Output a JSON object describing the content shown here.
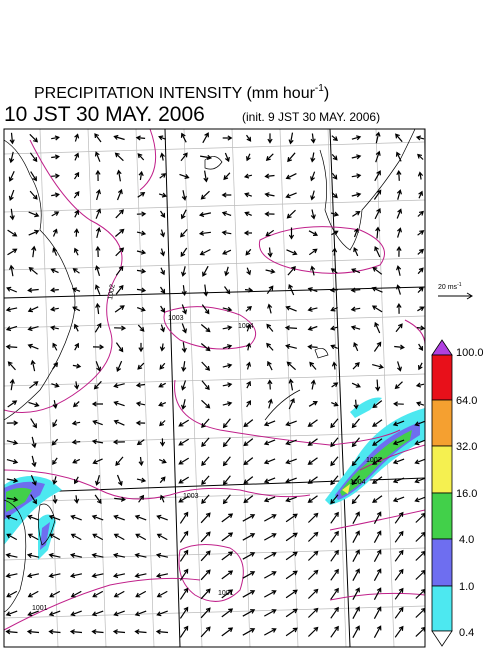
{
  "header": {
    "title": "PRECIPITATION INTENSITY (mm hour",
    "title_superscript": "-1",
    "title_close": ")",
    "valid_time": "10 JST 30 MAY. 2006",
    "init": "(init. 9 JST 30 MAY. 2006)"
  },
  "reference_vector": {
    "label": "20 ms",
    "superscript": "-1"
  },
  "colorbar": {
    "labels": [
      "100.0",
      "64.0",
      "32.0",
      "16.0",
      "4.0",
      "1.0",
      "0.4"
    ]
  },
  "isobar_labels": [
    "1002",
    "1003",
    "1004",
    "1003",
    "1001",
    "1001",
    "1002",
    "1004"
  ]
}
